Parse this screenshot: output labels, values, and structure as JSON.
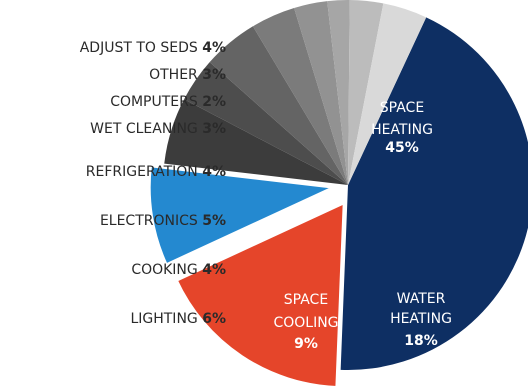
{
  "chart_data": {
    "type": "pie",
    "title": "",
    "slices": [
      {
        "label": "SPACE HEATING",
        "value": 45,
        "value_label": "45%",
        "color": "#0e2f63",
        "label_position": "inside",
        "exploded": false
      },
      {
        "label": "WATER HEATING",
        "value": 18,
        "value_label": "18%",
        "color": "#e5452a",
        "label_position": "inside",
        "exploded": true
      },
      {
        "label": "SPACE COOLING",
        "value": 9,
        "value_label": "9%",
        "color": "#2489d0",
        "label_position": "inside",
        "exploded": true
      },
      {
        "label": "LIGHTING",
        "value": 6,
        "value_label": "6%",
        "color": "#3c3c3c",
        "label_position": "outside",
        "exploded": false
      },
      {
        "label": "COOKING",
        "value": 4,
        "value_label": "4%",
        "color": "#4d4d4d",
        "label_position": "outside",
        "exploded": false
      },
      {
        "label": "ELECTRONICS",
        "value": 5,
        "value_label": "5%",
        "color": "#646464",
        "label_position": "outside",
        "exploded": false
      },
      {
        "label": "REFRIGERATION",
        "value": 4,
        "value_label": "4%",
        "color": "#7b7b7b",
        "label_position": "outside",
        "exploded": false
      },
      {
        "label": "WET CLEANING",
        "value": 3,
        "value_label": "3%",
        "color": "#929292",
        "label_position": "outside",
        "exploded": false
      },
      {
        "label": "COMPUTERS",
        "value": 2,
        "value_label": "2%",
        "color": "#a6a6a6",
        "label_position": "outside",
        "exploded": false
      },
      {
        "label": "OTHER",
        "value": 3,
        "value_label": "3%",
        "color": "#bcbcbc",
        "label_position": "outside",
        "exploded": false
      },
      {
        "label": "ADJUST TO SEDS",
        "value": 4,
        "value_label": "4%",
        "color": "#d9d9d9",
        "label_position": "outside",
        "exploded": false
      }
    ]
  }
}
